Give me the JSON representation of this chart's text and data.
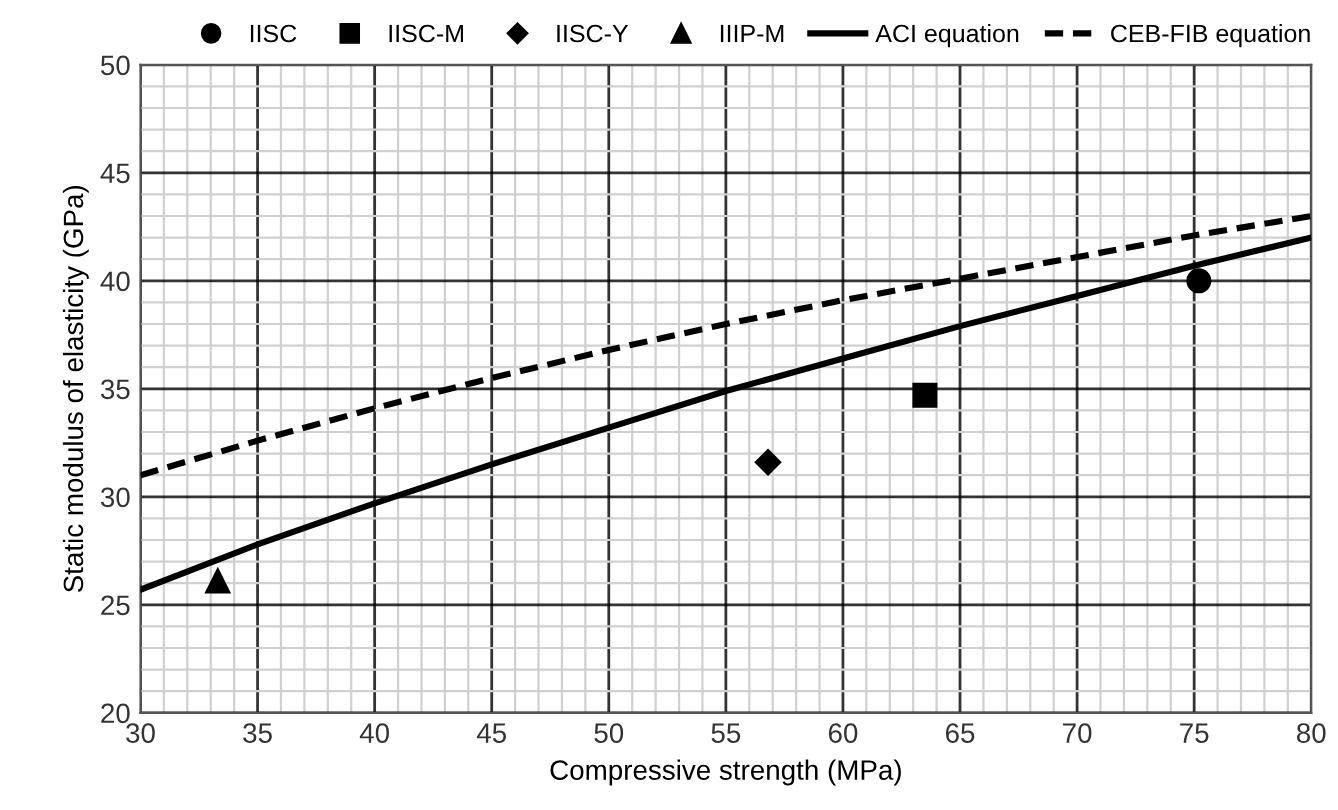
{
  "chart_data": {
    "type": "scatter",
    "xlabel": "Compressive strength (MPa)",
    "ylabel": "Static modulus of elasticity (GPa)",
    "xlim": [
      30,
      80
    ],
    "xticks": [
      30,
      35,
      40,
      45,
      50,
      55,
      60,
      65,
      70,
      75,
      80
    ],
    "ylim": [
      20,
      50
    ],
    "yticks": [
      20,
      25,
      30,
      35,
      40,
      45,
      50
    ],
    "grid": true,
    "legend": "top",
    "series": [
      {
        "name": "IISC",
        "marker": "circle",
        "color": "#000000",
        "x": [
          75.2
        ],
        "values": [
          40.0
        ]
      },
      {
        "name": "IISC-M",
        "marker": "square",
        "color": "#000000",
        "x": [
          63.5
        ],
        "values": [
          34.7
        ]
      },
      {
        "name": "IISC-Y",
        "marker": "diamond",
        "color": "#000000",
        "x": [
          56.8
        ],
        "values": [
          31.6
        ]
      },
      {
        "name": "IIIP-M",
        "marker": "triangle",
        "color": "#000000",
        "x": [
          33.3
        ],
        "values": [
          26.1
        ]
      },
      {
        "name": "ACI equation",
        "type": "line",
        "line_style": "solid",
        "color": "#000000",
        "x": [
          30,
          35,
          40,
          45,
          50,
          55,
          60,
          65,
          70,
          75,
          80
        ],
        "values": [
          25.7,
          27.8,
          29.7,
          31.5,
          33.2,
          34.9,
          36.4,
          37.9,
          39.3,
          40.7,
          42.0
        ]
      },
      {
        "name": "CEB-FIB equation",
        "type": "line",
        "line_style": "dashed",
        "color": "#000000",
        "x": [
          30,
          35,
          40,
          45,
          50,
          55,
          60,
          65,
          70,
          75,
          80
        ],
        "values": [
          31.0,
          32.6,
          34.1,
          35.5,
          36.8,
          38.0,
          39.1,
          40.1,
          41.1,
          42.1,
          43.0
        ]
      }
    ]
  }
}
